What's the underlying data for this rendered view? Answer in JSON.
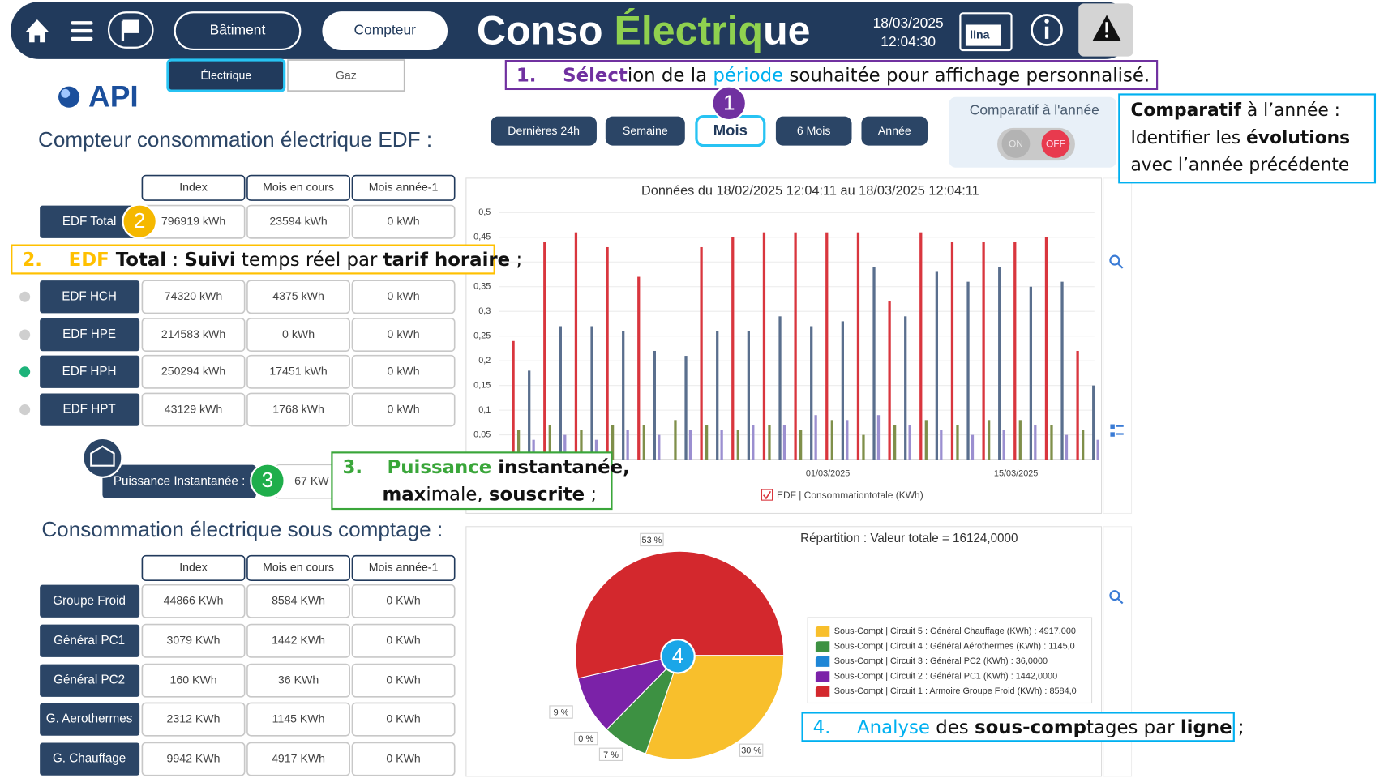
{
  "header": {
    "nav_buttons": [
      "Bâtiment",
      "Compteur"
    ],
    "title": [
      {
        "text": "Conso ",
        "color": "#ffffff"
      },
      {
        "text": "Électriq",
        "color": "#8fd14f"
      },
      {
        "text": "ue",
        "color": "#ffffff"
      }
    ],
    "date": "18/03/2025",
    "time": "12:04:30",
    "logo": "lina"
  },
  "tabs": [
    "Électrique",
    "Gaz"
  ],
  "brand": "API",
  "periods": {
    "buttons": [
      "Dernières 24h",
      "Semaine",
      "Mois",
      "6 Mois",
      "Année"
    ],
    "selected": 2
  },
  "comparatif": {
    "label": "Comparatif à l'année",
    "toggle": [
      "ON",
      "OFF"
    ]
  },
  "badges": [
    "1",
    "2",
    "3",
    "4"
  ],
  "edf": {
    "title": "Compteur consommation électrique EDF :",
    "headers": [
      "Index",
      "Mois en cours",
      "Mois année-1"
    ],
    "rows": [
      {
        "label": "EDF Total",
        "cells": [
          "796919 kWh",
          "23594 kWh",
          "0 kWh"
        ]
      },
      {
        "label": "EDF HCH",
        "cells": [
          "74320 kWh",
          "4375 kWh",
          "0 kWh"
        ],
        "dot": "#cfcfcf"
      },
      {
        "label": "EDF HPE",
        "cells": [
          "214583 kWh",
          "0 kWh",
          "0 kWh"
        ],
        "dot": "#cfcfcf"
      },
      {
        "label": "EDF HPH",
        "cells": [
          "250294 kWh",
          "17451 kWh",
          "0 kWh"
        ],
        "dot": "#1db37a"
      },
      {
        "label": "EDF HPT",
        "cells": [
          "43129 kWh",
          "1768 kWh",
          "0 kWh"
        ],
        "dot": "#cfcfcf"
      }
    ]
  },
  "puissance": {
    "label": "Puissance Instantanée :",
    "value": "67 KW"
  },
  "sous_comptage": {
    "title": "Consommation électrique sous comptage :",
    "headers": [
      "Index",
      "Mois en cours",
      "Mois année-1"
    ],
    "rows": [
      {
        "label": "Groupe Froid",
        "cells": [
          "44866 KWh",
          "8584 KWh",
          "0 KWh"
        ]
      },
      {
        "label": "Général PC1",
        "cells": [
          "3079 KWh",
          "1442 KWh",
          "0 KWh"
        ]
      },
      {
        "label": "Général PC2",
        "cells": [
          "160 KWh",
          "36 KWh",
          "0 KWh"
        ]
      },
      {
        "label": "G. Aerothermes",
        "cells": [
          "2312 KWh",
          "1145 KWh",
          "0 KWh"
        ]
      },
      {
        "label": "G. Chauffage",
        "cells": [
          "9942 KWh",
          "4917 KWh",
          "0 KWh"
        ]
      }
    ]
  },
  "callouts": [
    {
      "color": "#7030a0",
      "lines": [
        [
          {
            "text": "1.",
            "bold": true,
            "color": "#7030a0"
          },
          {
            "text": "Sélect",
            "bold": true,
            "color": "#7030a0"
          },
          {
            "text": "ion de la "
          },
          {
            "text": "période",
            "color": "#00b0f0"
          },
          {
            "text": " souhaitée pour affichage personnalisé."
          }
        ]
      ]
    },
    {
      "color": "#ffc000",
      "lines": [
        [
          {
            "text": "2.",
            "bold": true,
            "color": "#ffc000"
          },
          {
            "text": "EDF",
            "bold": true,
            "color": "#ffc000"
          },
          {
            "text": " Total",
            "bold": true
          },
          {
            "text": " : "
          },
          {
            "text": "Suivi",
            "bold": true
          },
          {
            "text": " temps réel par "
          },
          {
            "text": "tarif horaire",
            "bold": true
          },
          {
            "text": " ;"
          }
        ]
      ]
    },
    {
      "color": "#3aa63a",
      "lines": [
        [
          {
            "text": "3.",
            "bold": true,
            "color": "#3aa63a"
          },
          {
            "text": "Puissance",
            "bold": true,
            "color": "#3aa63a"
          },
          {
            "text": " instantanée,",
            "bold": true
          }
        ],
        [
          {
            "text": "max",
            "bold": true
          },
          {
            "text": "imale, "
          },
          {
            "text": "souscrite",
            "bold": true
          },
          {
            "text": " ;"
          }
        ]
      ]
    },
    {
      "color": "#00b0f0",
      "lines": [
        [
          {
            "text": "4.",
            "color": "#00b0f0"
          },
          {
            "text": "Analyse",
            "color": "#00b0f0"
          },
          {
            "text": " des "
          },
          {
            "text": "sous-comp",
            "bold": true
          },
          {
            "text": "tages par "
          },
          {
            "text": "ligne",
            "bold": true
          },
          {
            "text": " ;"
          }
        ]
      ]
    },
    {
      "color": "#00b0f0",
      "lines": [
        [
          {
            "text": "Comparatif",
            "bold": true
          },
          {
            "text": " à l’année :"
          }
        ],
        [
          {
            "text": "Identifier les "
          },
          {
            "text": "évolutions",
            "bold": true
          }
        ],
        [
          {
            "text": "avec l’année précédente"
          }
        ]
      ]
    }
  ],
  "chart_data": [
    {
      "type": "bar",
      "title": "Données du 18/02/2025 12:04:11 au 18/03/2025 12:04:11",
      "categories": [
        null,
        null,
        null,
        null,
        null,
        null,
        null,
        null,
        null,
        null,
        "01/03/2025",
        null,
        null,
        null,
        null,
        null,
        "15/03/2025",
        null,
        null
      ],
      "series": [
        {
          "color": "#d9363e",
          "values": [
            0.24,
            0.44,
            0.46,
            0.43,
            0.37,
            0,
            0.43,
            0.45,
            0.46,
            0.46,
            0.46,
            0.46,
            0.32,
            0.46,
            0.44,
            0.44,
            0.44,
            0.45,
            0.22
          ]
        },
        {
          "color": "#7f8f4a",
          "values": [
            0.06,
            0.07,
            0.06,
            0.07,
            0.07,
            0.08,
            0.07,
            0.06,
            0.07,
            0.06,
            0.08,
            0.05,
            0.07,
            0.08,
            0.07,
            0.08,
            0.08,
            0.07,
            0.06
          ]
        },
        {
          "color": "#5a6f8e",
          "values": [
            0.18,
            0.27,
            0.27,
            0.26,
            0.22,
            0.21,
            0.26,
            0.26,
            0.29,
            0.27,
            0.28,
            0.39,
            0.29,
            0.38,
            0.36,
            0.39,
            0.35,
            0.36,
            0.15
          ]
        },
        {
          "color": "#9b8fd0",
          "values": [
            0.04,
            0.05,
            0.04,
            0.06,
            0.05,
            0.06,
            0.06,
            0.07,
            0.07,
            0.09,
            0.08,
            0.09,
            0.07,
            0.06,
            0.05,
            0.06,
            0.07,
            0.05,
            0.04
          ]
        }
      ],
      "ylim": [
        0,
        0.5
      ],
      "yticks": [
        {
          "value": 0.05,
          "label": "0,05"
        },
        {
          "value": 0.1,
          "label": "0,1"
        },
        {
          "value": 0.15,
          "label": "0,15"
        },
        {
          "value": 0.2,
          "label": "0,2"
        },
        {
          "value": 0.25,
          "label": "0,25"
        },
        {
          "value": 0.3,
          "label": "0,3"
        },
        {
          "value": 0.35,
          "label": "0,35"
        },
        {
          "value": 0.4,
          "label": "0,4"
        },
        {
          "value": 0.45,
          "label": "0,45"
        },
        {
          "value": 0.5,
          "label": "0,5"
        }
      ],
      "grid": true,
      "legend": "EDF | Consommationtotale (KWh)",
      "legend_color": "#d9363e"
    },
    {
      "type": "pie",
      "title": "Répartition : Valeur totale = 16124,0000",
      "categories": [
        "Sous-Compt | Circuit 5 : Général Chauffage (KWh) : 4917,000",
        "Sous-Compt | Circuit 4 : Général Aérothermes (KWh) : 1145,0",
        "Sous-Compt | Circuit 3 : Général PC2 (KWh) : 36,0000",
        "Sous-Compt | Circuit 2 : Général PC1 (KWh) : 1442,0000",
        "Sous-Compt | Circuit 1 : Armoire Groupe Froid (KWh) : 8584,0"
      ],
      "values": [
        30,
        7,
        0,
        9,
        53
      ],
      "value_labels": [
        "30 %",
        "7 %",
        "0 %",
        "9 %",
        "53 %"
      ],
      "colors": [
        "#f8bf2c",
        "#3d9142",
        "#1f86d6",
        "#7b22a8",
        "#d3282d"
      ]
    }
  ]
}
